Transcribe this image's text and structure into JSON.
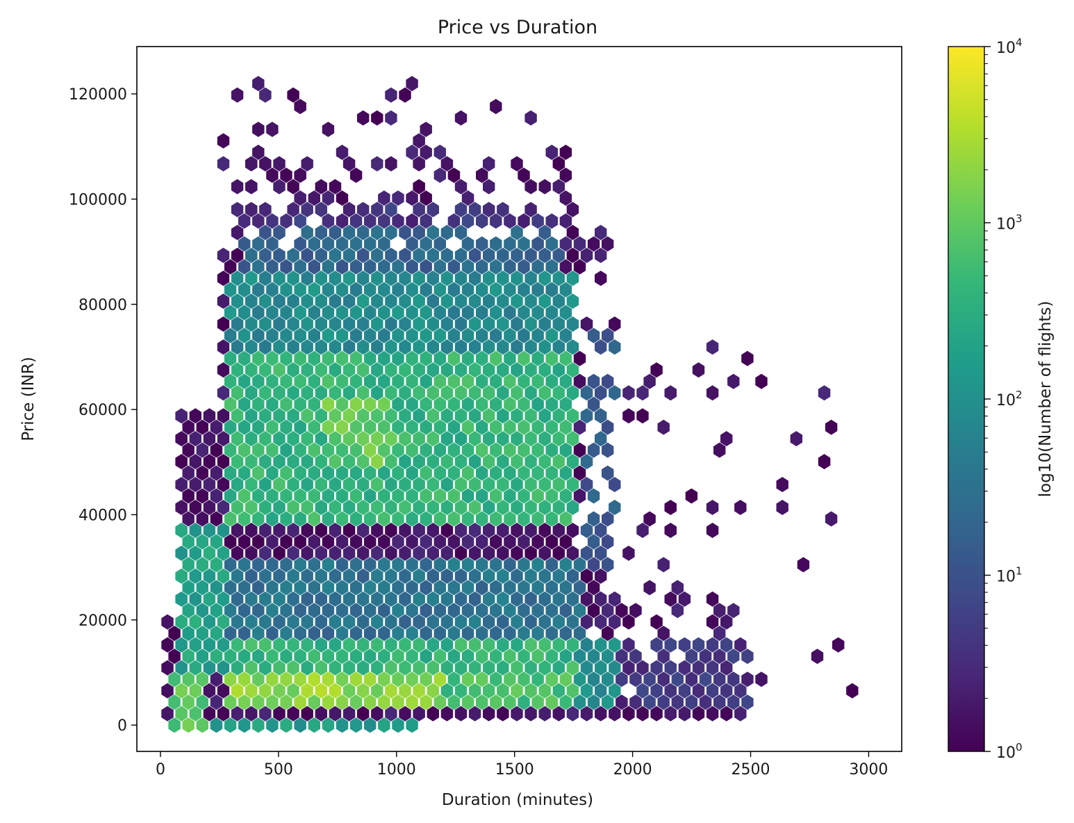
{
  "chart_data": {
    "type": "heatmap",
    "subtype": "hexbin",
    "title": "Price vs Duration",
    "xlabel": "Duration (minutes)",
    "ylabel": "Price (INR)",
    "xlim": [
      -100,
      3140
    ],
    "ylim": [
      -5000,
      129000
    ],
    "xticks": [
      0,
      500,
      1000,
      1500,
      2000,
      2500,
      3000
    ],
    "xtick_labels": [
      "0",
      "500",
      "1000",
      "1500",
      "2000",
      "2500",
      "3000"
    ],
    "yticks": [
      0,
      20000,
      40000,
      60000,
      80000,
      100000,
      120000
    ],
    "ytick_labels": [
      "0",
      "20000",
      "40000",
      "60000",
      "80000",
      "100000",
      "120000"
    ],
    "grid": false,
    "colormap": "viridis",
    "colorbar": {
      "label": "log10(Number of flights)",
      "scale": "log",
      "range": [
        1,
        10000
      ],
      "ticks": [
        {
          "value": 1,
          "base": "10",
          "exp": "0"
        },
        {
          "value": 10,
          "base": "10",
          "exp": "1"
        },
        {
          "value": 100,
          "base": "10",
          "exp": "2"
        },
        {
          "value": 1000,
          "base": "10",
          "exp": "3"
        },
        {
          "value": 10000,
          "base": "10",
          "exp": "4"
        }
      ],
      "colors": [
        "#440154",
        "#482878",
        "#3e4a89",
        "#31688e",
        "#26828e",
        "#1f9e89",
        "#35b779",
        "#6ece58",
        "#b5de2b",
        "#fde725"
      ]
    },
    "hexbin": {
      "bin_width_x": 59.2,
      "row_spacing_y": 2178,
      "count_regions": [
        {
          "x": [
            0,
            1100
          ],
          "y": [
            0,
            2000
          ],
          "log10_count": 2.2
        },
        {
          "x": [
            30,
            180
          ],
          "y": [
            0,
            9000
          ],
          "log10_count": 3.0
        },
        {
          "x": [
            130,
            130
          ],
          "y": [
            3000,
            3000
          ],
          "log10_count": 4.0
        },
        {
          "x": [
            280,
            1200
          ],
          "y": [
            3000,
            9000
          ],
          "log10_count": 3.3
        },
        {
          "x": [
            1200,
            1750
          ],
          "y": [
            3000,
            9000
          ],
          "log10_count": 2.8
        },
        {
          "x": [
            280,
            1750
          ],
          "y": [
            9000,
            16000
          ],
          "log10_count": 2.6
        },
        {
          "x": [
            1750,
            2000
          ],
          "y": [
            3000,
            16000
          ],
          "log10_count": 1.9
        },
        {
          "x": [
            2000,
            2500
          ],
          "y": [
            3000,
            16000
          ],
          "log10_count": 1.3
        },
        {
          "x": [
            280,
            1780
          ],
          "y": [
            16000,
            32000
          ],
          "log10_count": 1.5
        },
        {
          "x": [
            60,
            280
          ],
          "y": [
            9000,
            38000
          ],
          "log10_count": 2.3
        },
        {
          "x": [
            280,
            1750
          ],
          "y": [
            38000,
            70000
          ],
          "log10_count": 2.6
        },
        {
          "x": [
            700,
            1000
          ],
          "y": [
            50000,
            62000
          ],
          "log10_count": 3.0
        },
        {
          "x": [
            280,
            1750
          ],
          "y": [
            70000,
            86000
          ],
          "log10_count": 1.9
        },
        {
          "x": [
            330,
            1700
          ],
          "y": [
            86000,
            100000
          ],
          "log10_count": 1.3
        },
        {
          "x": [
            1780,
            1950
          ],
          "y": [
            30000,
            75000
          ],
          "log10_count": 1.1
        }
      ]
    }
  }
}
